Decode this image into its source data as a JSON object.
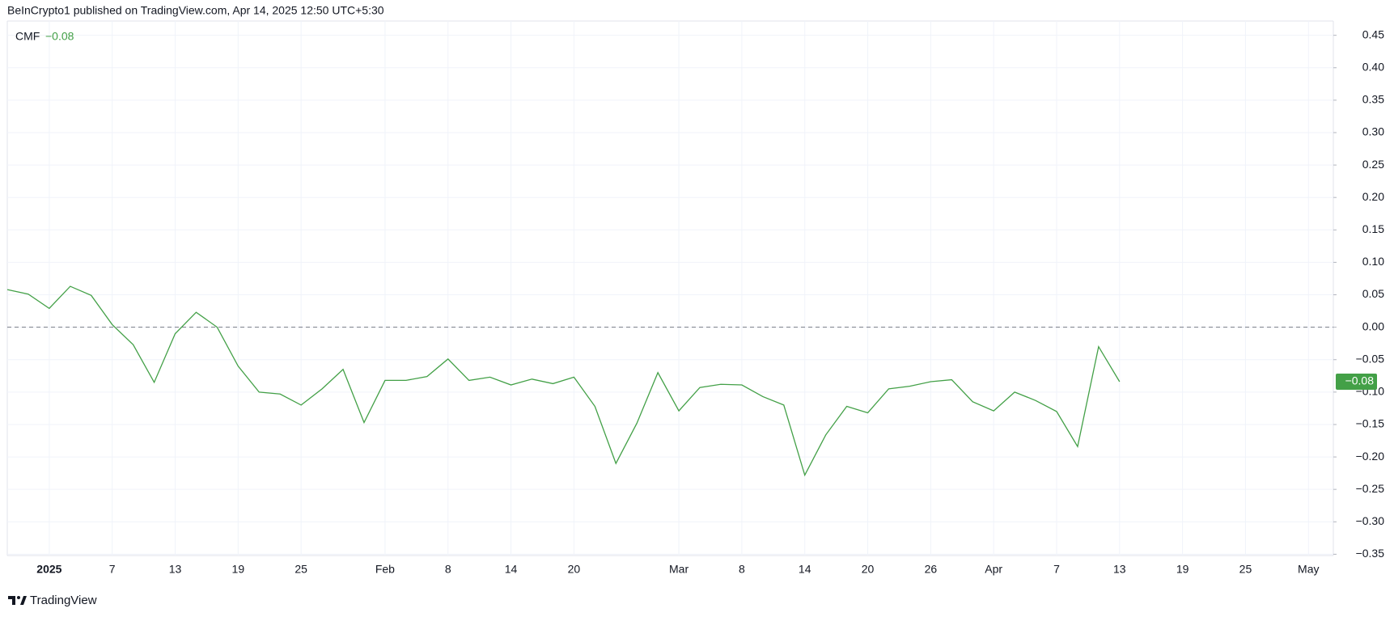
{
  "header": "BeInCrypto1 published on TradingView.com, Apr 14, 2025 12:50 UTC+5:30",
  "footer": "TradingView",
  "chart_data": {
    "type": "line",
    "indicator": {
      "name": "CMF",
      "value_label": "−0.08"
    },
    "categories": [
      null,
      null,
      "2025",
      null,
      null,
      "7",
      null,
      null,
      "13",
      null,
      null,
      "19",
      null,
      null,
      "25",
      null,
      null,
      null,
      "Feb",
      null,
      null,
      "8",
      null,
      null,
      "14",
      null,
      null,
      "20",
      null,
      null,
      null,
      null,
      "Mar",
      null,
      null,
      "8",
      null,
      null,
      "14",
      null,
      null,
      "20",
      null,
      null,
      "26",
      null,
      null,
      "Apr",
      null,
      null,
      "7",
      null,
      null,
      "13",
      null,
      null,
      "19",
      null,
      null,
      "25",
      null,
      null,
      "May",
      null
    ],
    "series": [
      {
        "name": "CMF",
        "color": "#43a047",
        "values": [
          0.058,
          0.051,
          0.029,
          0.063,
          0.049,
          0.004,
          -0.027,
          -0.085,
          -0.01,
          0.023,
          0.0,
          -0.06,
          -0.1,
          -0.103,
          -0.12,
          -0.095,
          -0.065,
          -0.147,
          -0.082,
          -0.082,
          -0.076,
          -0.049,
          -0.082,
          -0.077,
          -0.089,
          -0.08,
          -0.087,
          -0.077,
          -0.122,
          -0.21,
          -0.148,
          -0.07,
          -0.129,
          -0.093,
          -0.088,
          -0.089,
          -0.107,
          -0.12,
          -0.228,
          -0.166,
          -0.122,
          -0.132,
          -0.095,
          -0.091,
          -0.084,
          -0.081,
          -0.115,
          -0.129,
          -0.1,
          -0.113,
          -0.13,
          -0.184,
          -0.03,
          -0.084,
          null,
          null,
          null,
          null,
          null,
          null,
          null,
          null,
          null,
          null
        ]
      }
    ],
    "ylim": [
      -0.352,
      0.472
    ],
    "yticks": [
      {
        "value": 0.45,
        "label": "0.45"
      },
      {
        "value": 0.4,
        "label": "0.40"
      },
      {
        "value": 0.35,
        "label": "0.35"
      },
      {
        "value": 0.3,
        "label": "0.30"
      },
      {
        "value": 0.25,
        "label": "0.25"
      },
      {
        "value": 0.2,
        "label": "0.20"
      },
      {
        "value": 0.15,
        "label": "0.15"
      },
      {
        "value": 0.1,
        "label": "0.10"
      },
      {
        "value": 0.05,
        "label": "0.05"
      },
      {
        "value": 0,
        "label": "0.00"
      },
      {
        "value": -0.05,
        "label": "−0.05"
      },
      {
        "value": -0.1,
        "label": "−0.10"
      },
      {
        "value": -0.15,
        "label": "−0.15"
      },
      {
        "value": -0.2,
        "label": "−0.20"
      },
      {
        "value": -0.25,
        "label": "−0.25"
      },
      {
        "value": -0.3,
        "label": "−0.30"
      },
      {
        "value": -0.35,
        "label": "−0.35"
      }
    ],
    "zero_line": 0,
    "grid": true
  }
}
